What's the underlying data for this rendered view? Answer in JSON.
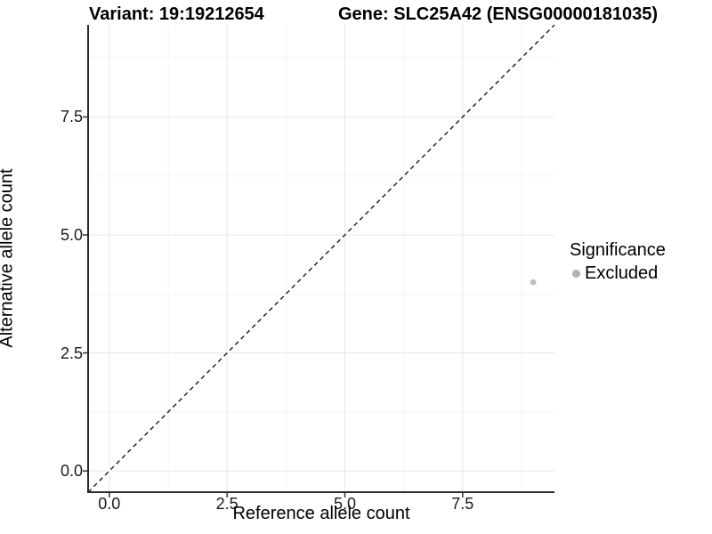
{
  "header": {
    "variant_title": "Variant: 19:19212654",
    "gene_title": "Gene: SLC25A42 (ENSG00000181035)"
  },
  "chart_data": {
    "type": "scatter",
    "title": "Variant: 19:19212654   Gene: SLC25A42 (ENSG00000181035)",
    "xlabel": "Reference allele count",
    "ylabel": "Alternative allele count",
    "xlim": [
      -0.45,
      9.45
    ],
    "ylim": [
      -0.45,
      9.45
    ],
    "x_ticks": [
      0.0,
      2.5,
      5.0,
      7.5
    ],
    "x_tick_labels": [
      "0.0",
      "2.5",
      "5.0",
      "7.5"
    ],
    "y_ticks": [
      0.0,
      2.5,
      5.0,
      7.5
    ],
    "y_tick_labels": [
      "0.0",
      "2.5",
      "5.0",
      "7.5"
    ],
    "x_minor_ticks": [
      1.25,
      3.75,
      6.25,
      8.75
    ],
    "y_minor_ticks": [
      1.25,
      3.75,
      6.25,
      8.75
    ],
    "grid": true,
    "points": [
      {
        "x": 9,
        "y": 4,
        "series": "Excluded"
      }
    ],
    "reference_line": {
      "kind": "identity",
      "style": "dashed",
      "color": "#1a1a1a"
    },
    "legend": {
      "title": "Significance",
      "position": "right",
      "entries": [
        {
          "label": "Excluded",
          "color": "#b2b2b2",
          "marker": "circle"
        }
      ]
    },
    "colors": {
      "point": "#bfbfbf",
      "grid_major": "#e7e7e7",
      "grid_minor": "#f3f3f3",
      "axis_line": "#2b2b2b",
      "tick_mark": "#333333"
    }
  }
}
